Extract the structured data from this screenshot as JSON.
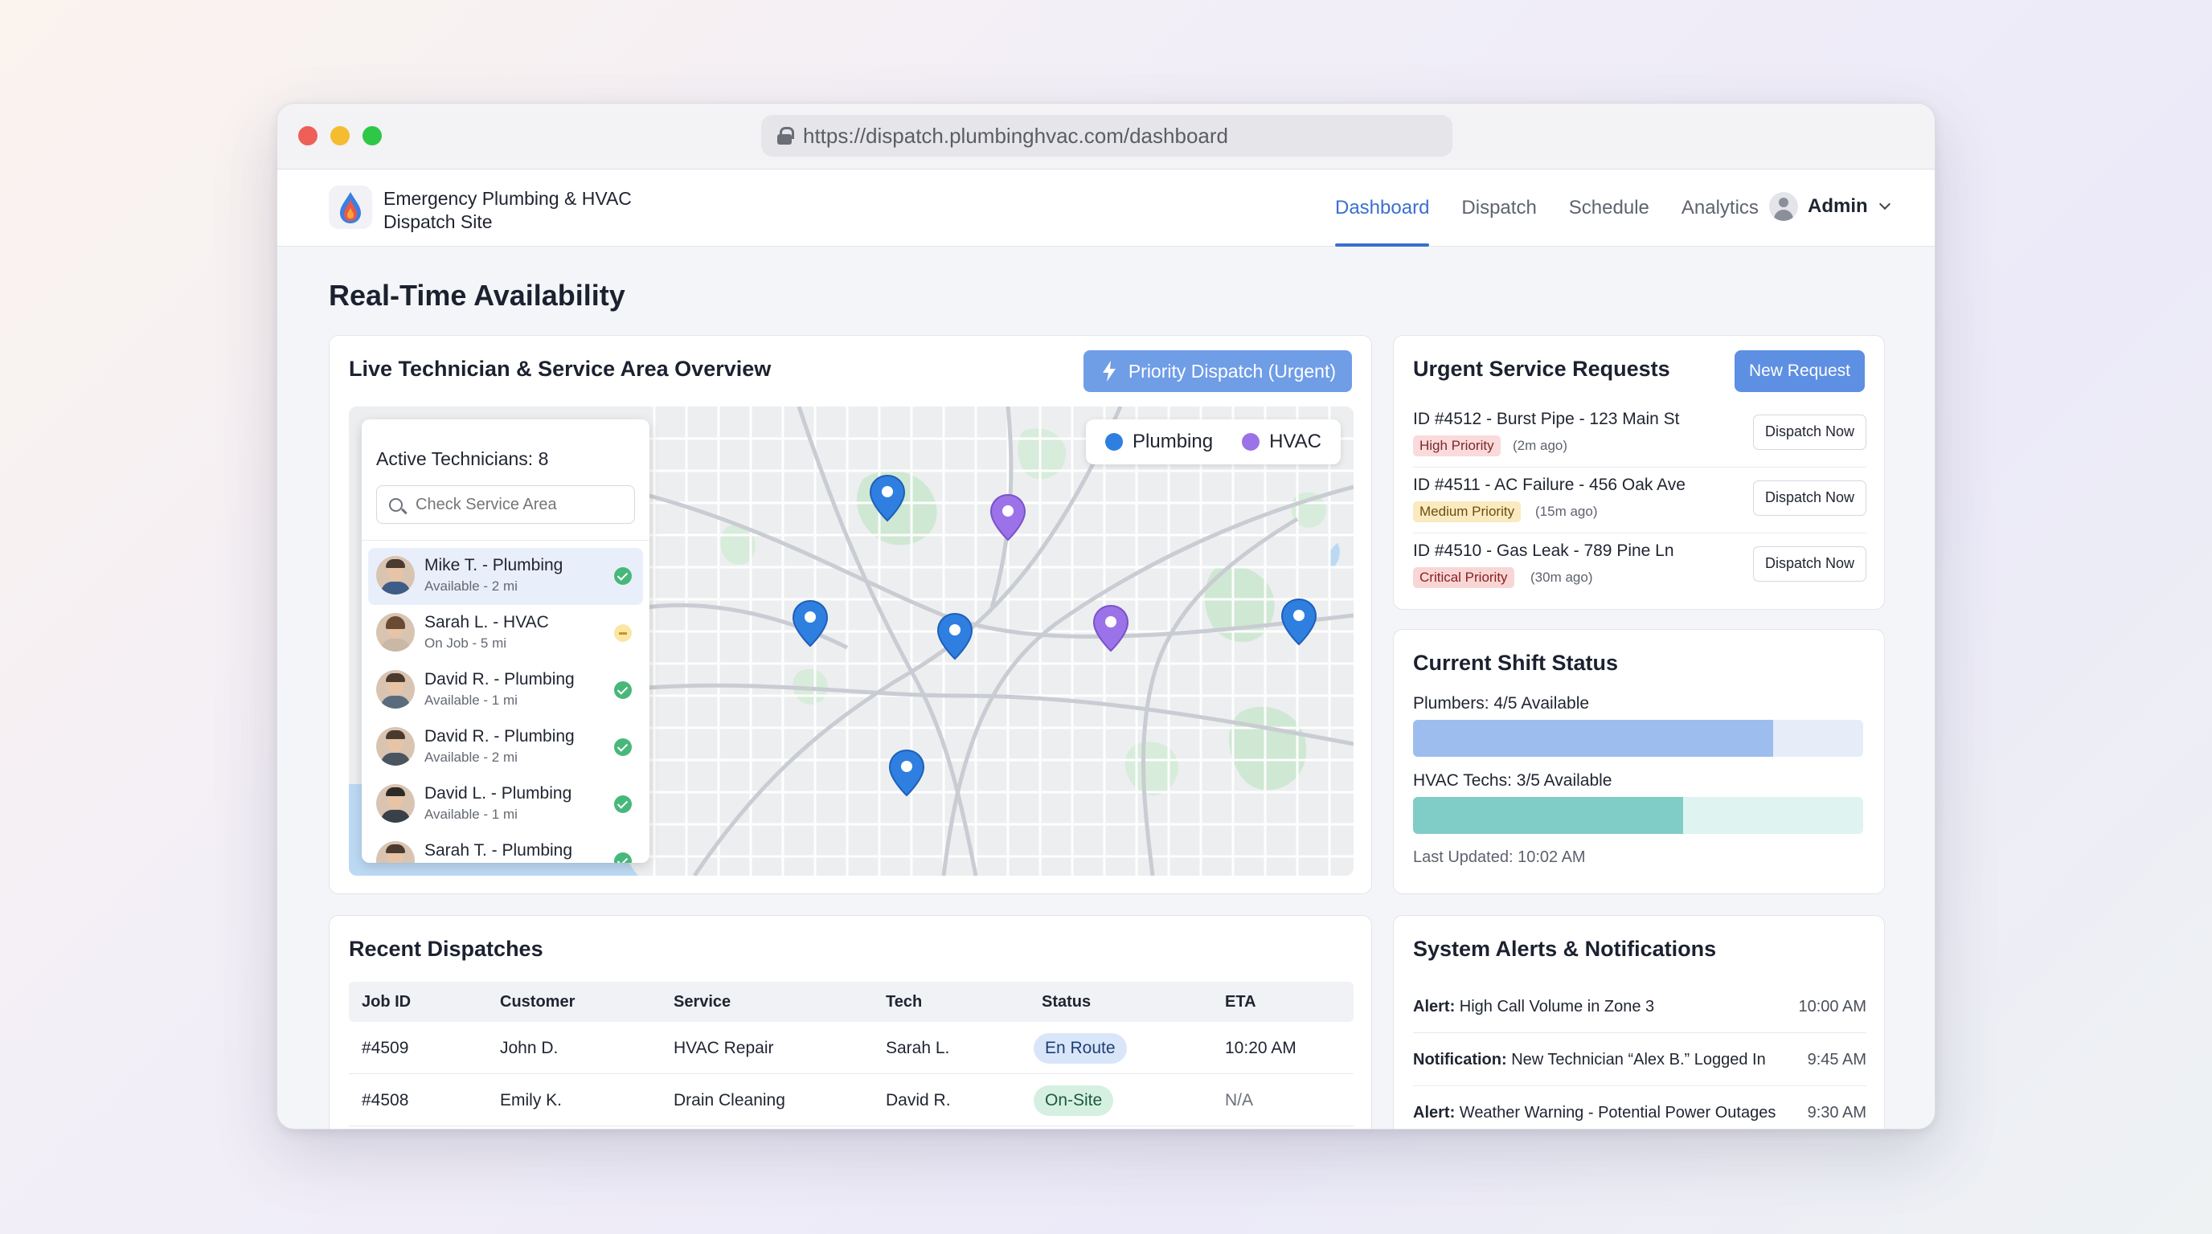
{
  "browser": {
    "url": "https://dispatch.plumbinghvac.com/dashboard"
  },
  "brand": {
    "name_line1": "Emergency Plumbing & HVAC",
    "name_line2": "Dispatch Site"
  },
  "nav": {
    "tabs": [
      {
        "label": "Dashboard",
        "active": true
      },
      {
        "label": "Dispatch",
        "active": false
      },
      {
        "label": "Schedule",
        "active": false
      },
      {
        "label": "Analytics",
        "active": false
      }
    ],
    "user": "Admin"
  },
  "page": {
    "title": "Real-Time Availability"
  },
  "map_card": {
    "title": "Live Technician & Service Area Overview",
    "priority_button": "Priority Dispatch (Urgent)",
    "legend": [
      {
        "label": "Plumbing",
        "color": "#2f7fe0"
      },
      {
        "label": "HVAC",
        "color": "#9b72e8"
      }
    ],
    "active_technicians": "Active Technicians: 8",
    "search_placeholder": "Check Service Area",
    "technicians": [
      {
        "name": "Mike T. - Plumbing",
        "status": "Available - 2 mi",
        "state": "available"
      },
      {
        "name": "Sarah L. - HVAC",
        "status": "On Job - 5 mi",
        "state": "busy"
      },
      {
        "name": "David R. - Plumbing",
        "status": "Available - 1 mi",
        "state": "available"
      },
      {
        "name": "David R. - Plumbing",
        "status": "Available - 2 mi",
        "state": "available"
      },
      {
        "name": "David L. - Plumbing",
        "status": "Available - 1 mi",
        "state": "available"
      },
      {
        "name": "Sarah T. - Plumbing",
        "status": "",
        "state": "available"
      }
    ]
  },
  "urgent": {
    "title": "Urgent Service Requests",
    "new_button": "New Request",
    "dispatch_label": "Dispatch Now",
    "requests": [
      {
        "title": "ID #4512 - Burst Pipe - 123 Main St",
        "priority": "High Priority",
        "ago": "(2m ago)"
      },
      {
        "title": "ID #4511 - AC Failure - 456 Oak Ave",
        "priority": "Medium Priority",
        "ago": "(15m ago)"
      },
      {
        "title": "ID #4510 - Gas Leak - 789 Pine Ln",
        "priority": "Critical Priority",
        "ago": "(30m ago)"
      }
    ]
  },
  "shift": {
    "title": "Current Shift Status",
    "plumbers_label": "Plumbers: 4/5 Available",
    "plumbers_available": 4,
    "plumbers_total": 5,
    "hvac_label": "HVAC Techs: 3/5 Available",
    "hvac_available": 3,
    "hvac_total": 5,
    "updated": "Last Updated: 10:02 AM"
  },
  "dispatches": {
    "title": "Recent Dispatches",
    "columns": [
      "Job ID",
      "Customer",
      "Service",
      "Tech",
      "Status",
      "ETA"
    ],
    "rows": [
      {
        "job": "#4509",
        "customer": "John D.",
        "service": "HVAC Repair",
        "tech": "Sarah L.",
        "status": "En Route",
        "eta": "10:20 AM"
      },
      {
        "job": "#4508",
        "customer": "Emily K.",
        "service": "Drain Cleaning",
        "tech": "David R.",
        "status": "On-Site",
        "eta": "N/A"
      }
    ]
  },
  "alerts": {
    "title": "System Alerts & Notifications",
    "items": [
      {
        "kind": "Alert:",
        "text": "High Call Volume in Zone 3",
        "time": "10:00 AM"
      },
      {
        "kind": "Notification:",
        "text": "New Technician “Alex B.” Logged In",
        "time": "9:45 AM"
      },
      {
        "kind": "Alert:",
        "text": "Weather Warning - Potential Power Outages",
        "time": "9:30 AM"
      }
    ]
  }
}
